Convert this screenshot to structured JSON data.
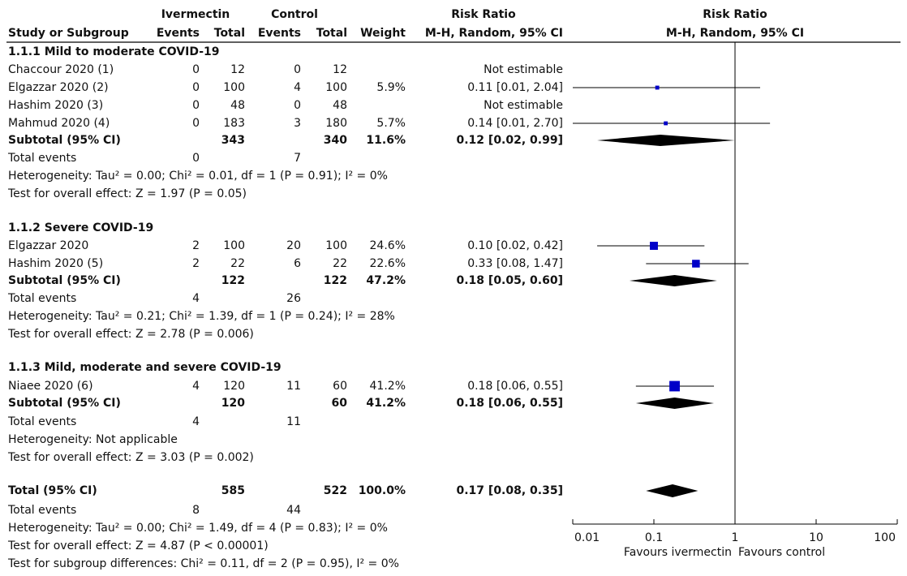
{
  "header": {
    "group1": "Ivermectin",
    "group2": "Control",
    "effect_col": "Risk Ratio",
    "plot_title": "Risk Ratio",
    "study_col": "Study or Subgroup",
    "events1": "Events",
    "total1": "Total",
    "events2": "Events",
    "total2": "Total",
    "weight": "Weight",
    "method": "M-H, Random, 95% CI",
    "plot_method": "M-H, Random, 95% CI"
  },
  "subgroups": [
    {
      "title": "1.1.1 Mild to moderate COVID-19",
      "studies": [
        {
          "name": "Chaccour 2020 (1)",
          "e1": "0",
          "n1": "12",
          "e2": "0",
          "n2": "12",
          "weight": "",
          "ci": "Not estimable"
        },
        {
          "name": "Elgazzar 2020 (2)",
          "e1": "0",
          "n1": "100",
          "e2": "4",
          "n2": "100",
          "weight": "5.9%",
          "ci": "0.11 [0.01, 2.04]"
        },
        {
          "name": "Hashim 2020 (3)",
          "e1": "0",
          "n1": "48",
          "e2": "0",
          "n2": "48",
          "weight": "",
          "ci": "Not estimable"
        },
        {
          "name": "Mahmud 2020 (4)",
          "e1": "0",
          "n1": "183",
          "e2": "3",
          "n2": "180",
          "weight": "5.7%",
          "ci": "0.14 [0.01, 2.70]"
        }
      ],
      "subtotal": {
        "label": "Subtotal (95% CI)",
        "n1": "343",
        "n2": "340",
        "weight": "11.6%",
        "ci": "0.12 [0.02, 0.99]"
      },
      "events": {
        "label": "Total events",
        "e1": "0",
        "e2": "7"
      },
      "heterogeneity": "Heterogeneity: Tau² = 0.00; Chi² = 0.01, df = 1 (P = 0.91); I² = 0%",
      "overall": "Test for overall effect: Z = 1.97 (P = 0.05)"
    },
    {
      "title": "1.1.2 Severe COVID-19",
      "studies": [
        {
          "name": "Elgazzar 2020",
          "e1": "2",
          "n1": "100",
          "e2": "20",
          "n2": "100",
          "weight": "24.6%",
          "ci": "0.10 [0.02, 0.42]"
        },
        {
          "name": "Hashim 2020 (5)",
          "e1": "2",
          "n1": "22",
          "e2": "6",
          "n2": "22",
          "weight": "22.6%",
          "ci": "0.33 [0.08, 1.47]"
        }
      ],
      "subtotal": {
        "label": "Subtotal (95% CI)",
        "n1": "122",
        "n2": "122",
        "weight": "47.2%",
        "ci": "0.18 [0.05, 0.60]"
      },
      "events": {
        "label": "Total events",
        "e1": "4",
        "e2": "26"
      },
      "heterogeneity": "Heterogeneity: Tau² = 0.21; Chi² = 1.39, df = 1 (P = 0.24); I² = 28%",
      "overall": "Test for overall effect: Z = 2.78 (P = 0.006)"
    },
    {
      "title": "1.1.3 Mild, moderate and severe COVID-19",
      "studies": [
        {
          "name": "Niaee 2020 (6)",
          "e1": "4",
          "n1": "120",
          "e2": "11",
          "n2": "60",
          "weight": "41.2%",
          "ci": "0.18 [0.06, 0.55]"
        }
      ],
      "subtotal": {
        "label": "Subtotal (95% CI)",
        "n1": "120",
        "n2": "60",
        "weight": "41.2%",
        "ci": "0.18 [0.06, 0.55]"
      },
      "events": {
        "label": "Total events",
        "e1": "4",
        "e2": "11"
      },
      "heterogeneity": "Heterogeneity: Not applicable",
      "overall": "Test for overall effect: Z = 3.03 (P = 0.002)"
    }
  ],
  "total": {
    "label": "Total (95% CI)",
    "n1": "585",
    "n2": "522",
    "weight": "100.0%",
    "ci": "0.17 [0.08, 0.35]",
    "events_label": "Total events",
    "e1": "8",
    "e2": "44",
    "heterogeneity": "Heterogeneity: Tau² = 0.00; Chi² = 1.49, df = 4 (P = 0.83); I² = 0%",
    "overall": "Test for overall effect: Z = 4.87 (P < 0.00001)",
    "subgroup_diff": "Test for subgroup differences: Chi² = 0.11, df = 2 (P = 0.95), I² = 0%"
  },
  "axis": {
    "ticks": [
      {
        "value": 0.01,
        "label": "0.01"
      },
      {
        "value": 0.1,
        "label": "0.1"
      },
      {
        "value": 1,
        "label": "1"
      },
      {
        "value": 10,
        "label": "10"
      },
      {
        "value": 100,
        "label": "100"
      }
    ],
    "favours_left": "Favours ivermectin",
    "favours_right": "Favours control"
  },
  "colors": {
    "square": "#0000c8",
    "diamond": "#000000",
    "line": "#000000"
  },
  "chart_data": {
    "type": "forest",
    "scale": "log",
    "xlim": [
      0.01,
      100
    ],
    "null_value": 1,
    "studies": [
      {
        "name": "Chaccour 2020 (1)",
        "rr": null,
        "lo": null,
        "hi": null,
        "weight": null
      },
      {
        "name": "Elgazzar 2020 (2)",
        "rr": 0.11,
        "lo": 0.01,
        "hi": 2.04,
        "weight": 5.9
      },
      {
        "name": "Hashim 2020 (3)",
        "rr": null,
        "lo": null,
        "hi": null,
        "weight": null
      },
      {
        "name": "Mahmud 2020 (4)",
        "rr": 0.14,
        "lo": 0.01,
        "hi": 2.7,
        "weight": 5.7
      },
      {
        "name": "Elgazzar 2020",
        "rr": 0.1,
        "lo": 0.02,
        "hi": 0.42,
        "weight": 24.6
      },
      {
        "name": "Hashim 2020 (5)",
        "rr": 0.33,
        "lo": 0.08,
        "hi": 1.47,
        "weight": 22.6
      },
      {
        "name": "Niaee 2020 (6)",
        "rr": 0.18,
        "lo": 0.06,
        "hi": 0.55,
        "weight": 41.2
      }
    ],
    "pooled": [
      {
        "name": "Subtotal 1.1.1",
        "rr": 0.12,
        "lo": 0.02,
        "hi": 0.99
      },
      {
        "name": "Subtotal 1.1.2",
        "rr": 0.18,
        "lo": 0.05,
        "hi": 0.6
      },
      {
        "name": "Subtotal 1.1.3",
        "rr": 0.18,
        "lo": 0.06,
        "hi": 0.55
      },
      {
        "name": "Total",
        "rr": 0.17,
        "lo": 0.08,
        "hi": 0.35
      }
    ]
  }
}
